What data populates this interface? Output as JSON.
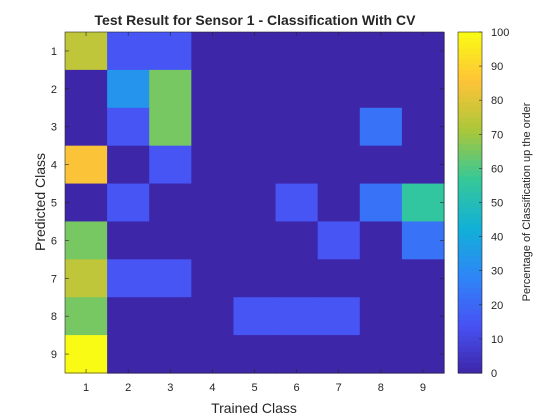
{
  "chart_data": {
    "type": "heatmap",
    "title": "Test Result for Sensor 1 - Classification With CV",
    "xlabel": "Trained Class",
    "ylabel": "Predicted Class",
    "x_categories": [
      "1",
      "2",
      "3",
      "4",
      "5",
      "6",
      "7",
      "8",
      "9"
    ],
    "y_categories": [
      "1",
      "2",
      "3",
      "4",
      "5",
      "6",
      "7",
      "8",
      "9"
    ],
    "values": [
      [
        75,
        15,
        15,
        0,
        0,
        0,
        0,
        0,
        0
      ],
      [
        0,
        33,
        65,
        0,
        0,
        0,
        0,
        0,
        0
      ],
      [
        0,
        15,
        65,
        0,
        0,
        0,
        0,
        23,
        0
      ],
      [
        85,
        0,
        15,
        0,
        0,
        0,
        0,
        0,
        0
      ],
      [
        0,
        15,
        0,
        0,
        0,
        15,
        0,
        23,
        55
      ],
      [
        65,
        0,
        0,
        0,
        0,
        0,
        15,
        0,
        23
      ],
      [
        75,
        15,
        15,
        0,
        0,
        0,
        0,
        0,
        0
      ],
      [
        65,
        0,
        0,
        0,
        15,
        15,
        15,
        0,
        0
      ],
      [
        100,
        0,
        0,
        0,
        0,
        0,
        0,
        0,
        0
      ]
    ],
    "colorbar": {
      "label": "Percentage of Classification up the order",
      "min": 0,
      "max": 100,
      "ticks": [
        "0",
        "10",
        "20",
        "30",
        "40",
        "50",
        "60",
        "70",
        "80",
        "90",
        "100"
      ]
    },
    "colormap": "parula",
    "grid": false
  }
}
